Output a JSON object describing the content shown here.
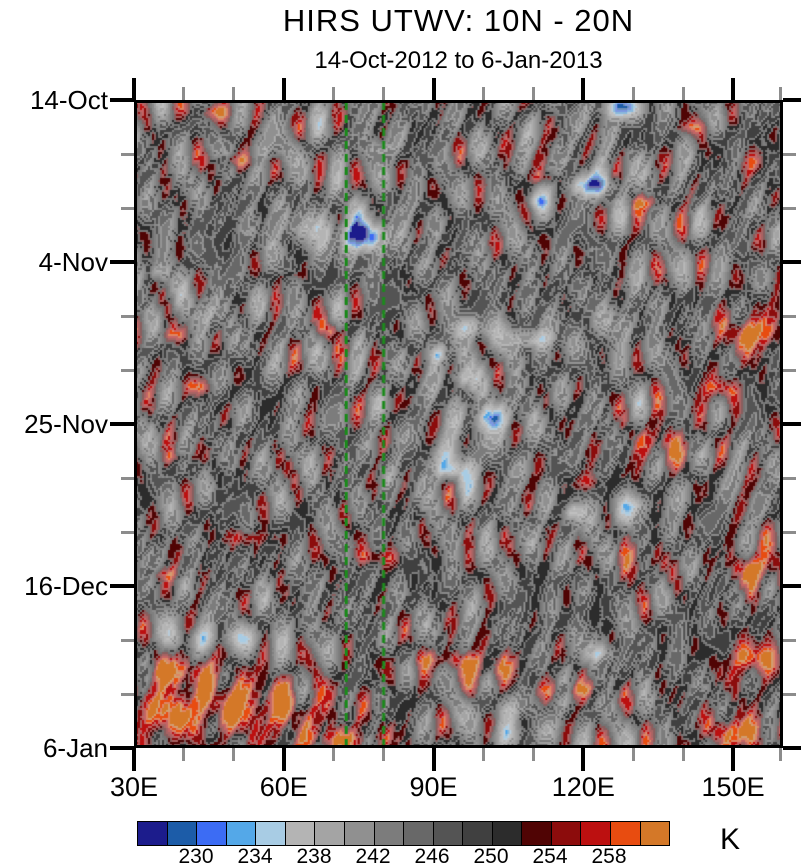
{
  "title": "HIRS UTWV: 10N - 20N",
  "subtitle": "14-Oct-2012 to 6-Jan-2013",
  "units_label": "K",
  "chart_data": {
    "type": "heatmap",
    "subtype": "hovmoller_time_longitude",
    "x_axis": {
      "min_lon": 30,
      "max_lon": 160,
      "major_ticks": [
        {
          "lon": 30,
          "label": "30E"
        },
        {
          "lon": 60,
          "label": "60E"
        },
        {
          "lon": 90,
          "label": "90E"
        },
        {
          "lon": 120,
          "label": "120E"
        },
        {
          "lon": 150,
          "label": "150E"
        }
      ],
      "minor_lons": [
        40,
        50,
        70,
        80,
        100,
        110,
        130,
        140,
        160
      ]
    },
    "y_axis": {
      "start_date": "14-Oct-2012",
      "end_date": "6-Jan-2013",
      "total_days": 84,
      "major_ticks": [
        {
          "day": 0,
          "label": "14-Oct"
        },
        {
          "day": 21,
          "label": "4-Nov"
        },
        {
          "day": 42,
          "label": "25-Nov"
        },
        {
          "day": 63,
          "label": "16-Dec"
        },
        {
          "day": 84,
          "label": "6-Jan"
        }
      ],
      "minor_days": [
        7,
        14,
        28,
        35,
        49,
        56,
        70,
        77
      ]
    },
    "colorbar": {
      "level_min_k": 226,
      "level_step_k": 2,
      "colors": [
        "#1c1c8c",
        "#1c5ca8",
        "#3c6cf4",
        "#54a8e8",
        "#a8cce4",
        "#b4b4b4",
        "#a4a4a4",
        "#909090",
        "#7c7c7c",
        "#686868",
        "#545454",
        "#404040",
        "#2c2c2c",
        "#500404",
        "#8c0c0c",
        "#bc1010",
        "#e84c10",
        "#d47828"
      ],
      "tick_labels": [
        "230",
        "234",
        "238",
        "242",
        "246",
        "250",
        "254",
        "258"
      ],
      "tick_after_box": [
        2,
        4,
        6,
        8,
        10,
        12,
        14,
        16
      ]
    },
    "reference_lines": {
      "color": "#1c8a1c",
      "style": "dashed",
      "lons": [
        72.5,
        80
      ]
    },
    "field": {
      "base_k": 248.3,
      "noise_amp_k": 1.25,
      "noise_seed": 7,
      "feature_format": "[lon_e, day_from_start, sigma_lon_deg, sigma_days, amplitude_k]",
      "features": [
        [
          75.5,
          17.6,
          4.0,
          1.6,
          -21
        ],
        [
          79.5,
          6.3,
          2.2,
          0.9,
          -9
        ],
        [
          127.5,
          1.0,
          3.5,
          1.2,
          -16
        ],
        [
          121.5,
          11.0,
          4.5,
          1.2,
          -16
        ],
        [
          110.5,
          13.2,
          2.0,
          0.8,
          -8
        ],
        [
          97.5,
          29.6,
          3.2,
          1.2,
          -11
        ],
        [
          109.5,
          31.0,
          3.8,
          1.1,
          -12
        ],
        [
          91.0,
          33.0,
          1.8,
          0.9,
          -9
        ],
        [
          95.5,
          36.0,
          2.2,
          1.1,
          -10
        ],
        [
          101.5,
          41.2,
          3.2,
          1.4,
          -15
        ],
        [
          93.5,
          48.0,
          2.8,
          1.0,
          -11
        ],
        [
          118.0,
          53.4,
          1.8,
          0.8,
          -9
        ],
        [
          34.8,
          22.3,
          1.8,
          0.9,
          -7
        ],
        [
          131.0,
          52.5,
          2.8,
          1.0,
          -6
        ],
        [
          123.5,
          71.7,
          2.8,
          1.0,
          -9
        ],
        [
          107.0,
          82.3,
          3.5,
          1.2,
          -7
        ],
        [
          62.0,
          16.5,
          6.0,
          1.8,
          -6
        ],
        [
          58.0,
          6.5,
          5.0,
          1.5,
          -5
        ],
        [
          45.0,
          27.5,
          5.0,
          2.0,
          -5
        ],
        [
          126.0,
          29.0,
          5.0,
          1.8,
          -5
        ],
        [
          95.0,
          46.5,
          5.0,
          1.8,
          -5
        ],
        [
          47.0,
          69.8,
          11.0,
          1.4,
          -8
        ],
        [
          126.5,
          53.5,
          4.5,
          1.6,
          -5
        ],
        [
          104.0,
          78.8,
          7.0,
          1.3,
          -5
        ],
        [
          45.5,
          1.6,
          4.0,
          0.9,
          8
        ],
        [
          50.5,
          7.9,
          4.5,
          0.9,
          8
        ],
        [
          112.5,
          10.2,
          3.8,
          0.9,
          8
        ],
        [
          133.0,
          13.3,
          3.2,
          0.8,
          8
        ],
        [
          141.5,
          3.6,
          2.8,
          0.8,
          7
        ],
        [
          154.5,
          8.0,
          2.5,
          1.5,
          7
        ],
        [
          154.5,
          30.3,
          4.5,
          2.0,
          14
        ],
        [
          147.5,
          37.5,
          3.8,
          1.4,
          9
        ],
        [
          136.0,
          44.5,
          4.5,
          2.0,
          9
        ],
        [
          122.0,
          49.6,
          3.5,
          1.1,
          7
        ],
        [
          131.0,
          60.0,
          3.5,
          2.2,
          7
        ],
        [
          155.0,
          60.8,
          3.8,
          1.9,
          13
        ],
        [
          153.5,
          72.5,
          4.0,
          2.0,
          13
        ],
        [
          151.0,
          82.0,
          5.5,
          1.9,
          12
        ],
        [
          53.5,
          78.6,
          13.0,
          3.0,
          11
        ],
        [
          36.0,
          80.0,
          5.0,
          2.5,
          9
        ],
        [
          39.0,
          74.0,
          7.0,
          1.7,
          9
        ],
        [
          93.5,
          72.6,
          8.0,
          1.1,
          7
        ],
        [
          71.0,
          83.0,
          8.0,
          1.4,
          8
        ],
        [
          101.0,
          74.0,
          3.5,
          1.4,
          9
        ],
        [
          118.0,
          76.5,
          6.0,
          1.0,
          7
        ],
        [
          37.5,
          30.4,
          3.0,
          0.9,
          7
        ],
        [
          43.0,
          37.2,
          2.8,
          0.8,
          7
        ],
        [
          61.5,
          22.8,
          2.5,
          0.6,
          6
        ],
        [
          69.5,
          29.8,
          2.2,
          0.9,
          7
        ],
        [
          78.5,
          59.3,
          5.0,
          1.1,
          7
        ],
        [
          53.0,
          56.8,
          5.5,
          1.0,
          7
        ],
        [
          36.5,
          61.5,
          3.2,
          0.7,
          6
        ],
        [
          39.0,
          46.3,
          2.8,
          0.7,
          6
        ]
      ]
    }
  }
}
